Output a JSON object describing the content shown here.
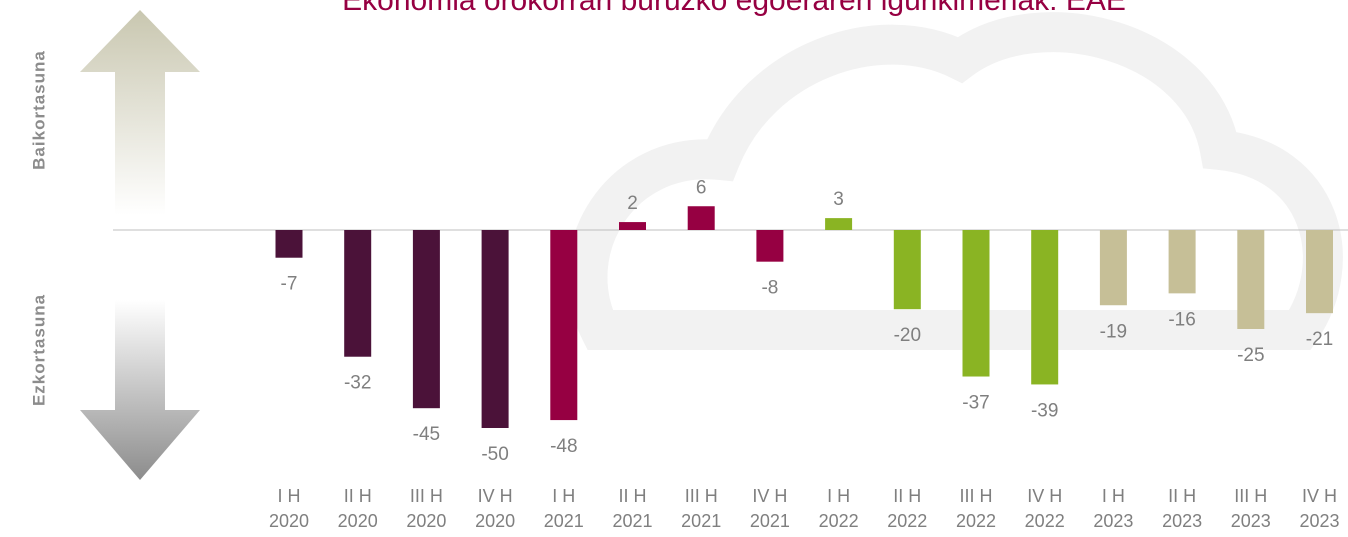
{
  "chart_data": {
    "type": "bar",
    "title": "Ekonomia orokorrari buruzko egoeraren igurikimenak: EAE",
    "side_labels": [
      "Baikortasuna",
      "Ezkortasuna"
    ],
    "categories": [
      [
        "I H",
        "2020"
      ],
      [
        "II H",
        "2020"
      ],
      [
        "III H",
        "2020"
      ],
      [
        "IV H",
        "2020"
      ],
      [
        "I H",
        "2021"
      ],
      [
        "II H",
        "2021"
      ],
      [
        "III H",
        "2021"
      ],
      [
        "IV H",
        "2021"
      ],
      [
        "I H",
        "2022"
      ],
      [
        "II H",
        "2022"
      ],
      [
        "III H",
        "2022"
      ],
      [
        "IV H",
        "2022"
      ],
      [
        "I H",
        "2023"
      ],
      [
        "II H",
        "2023"
      ],
      [
        "III H",
        "2023"
      ],
      [
        "IV H",
        "2023"
      ]
    ],
    "values": [
      -7,
      -32,
      -45,
      -50,
      -48,
      2,
      6,
      -8,
      3,
      -20,
      -37,
      -39,
      -19,
      -16,
      -25,
      -21
    ],
    "colors": [
      "#4b1239",
      "#4b1239",
      "#4b1239",
      "#4b1239",
      "#960042",
      "#960042",
      "#960042",
      "#960042",
      "#8ab423",
      "#8ab423",
      "#8ab423",
      "#8ab423",
      "#c6bf97",
      "#c6bf97",
      "#c6bf97",
      "#c6bf97"
    ]
  }
}
